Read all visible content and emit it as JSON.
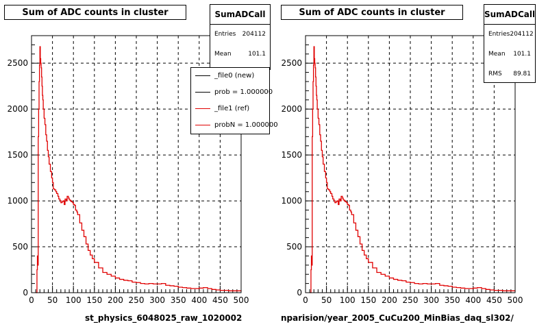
{
  "chart_data": [
    {
      "type": "line",
      "title": "Sum of ADC counts in cluster",
      "xlabel": "st_physics_6048025_raw_1020002",
      "xlim": [
        0,
        500
      ],
      "ylim": [
        0,
        2800
      ],
      "xticks": [
        "0",
        "50",
        "100",
        "150",
        "200",
        "250",
        "300",
        "350",
        "400",
        "450",
        "500"
      ],
      "yticks": [
        "0",
        "500",
        "1000",
        "1500",
        "2000",
        "2500"
      ],
      "grid": true,
      "stats": {
        "name": "SumADCall",
        "rows": [
          {
            "label": "Entries",
            "value": "204112"
          },
          {
            "label": "Mean",
            "value": "101.1"
          }
        ]
      },
      "legend": [
        {
          "label": "_file0 (new)",
          "color": "#000000"
        },
        {
          "label": "prob = 1.000000",
          "color": "#000000"
        },
        {
          "label": "_file1 (ref)",
          "color": "#e00000"
        },
        {
          "label": "probN = 1.000000",
          "color": "#e00000"
        }
      ],
      "series": [
        {
          "color": "#e00000",
          "x": [
            10,
            13,
            14,
            15,
            16,
            17,
            18,
            19,
            20,
            21,
            22,
            23,
            24,
            25,
            26,
            27,
            28,
            30,
            32,
            34,
            36,
            38,
            40,
            42,
            45,
            48,
            50,
            52,
            55,
            58,
            60,
            63,
            65,
            68,
            70,
            73,
            75,
            78,
            80,
            83,
            85,
            88,
            90,
            93,
            95,
            98,
            100,
            103,
            105,
            108,
            110,
            115,
            120,
            125,
            130,
            135,
            140,
            145,
            150,
            160,
            170,
            180,
            190,
            200,
            210,
            220,
            230,
            240,
            250,
            260,
            270,
            280,
            290,
            300,
            310,
            320,
            330,
            340,
            350,
            360,
            370,
            380,
            390,
            400,
            410,
            420,
            430,
            440,
            450,
            460,
            470,
            480,
            490,
            500
          ],
          "y": [
            0,
            250,
            400,
            300,
            1700,
            2000,
            2300,
            2480,
            2680,
            2550,
            2500,
            2450,
            2350,
            2250,
            2150,
            2100,
            2000,
            1900,
            1830,
            1720,
            1650,
            1550,
            1480,
            1400,
            1320,
            1250,
            1200,
            1130,
            1120,
            1100,
            1080,
            1050,
            1020,
            1000,
            980,
            990,
            1000,
            960,
            1020,
            1000,
            1050,
            1030,
            1010,
            1000,
            990,
            980,
            960,
            950,
            900,
            880,
            850,
            760,
            680,
            610,
            530,
            460,
            410,
            370,
            330,
            270,
            220,
            200,
            180,
            160,
            145,
            135,
            130,
            115,
            110,
            100,
            95,
            100,
            95,
            95,
            100,
            80,
            75,
            70,
            60,
            55,
            50,
            45,
            45,
            50,
            55,
            45,
            35,
            30,
            25,
            25,
            20,
            20,
            20,
            15
          ]
        }
      ]
    },
    {
      "type": "line",
      "title": "Sum of ADC counts in cluster",
      "xlabel": "nparision/year_2005_CuCu200_MinBias_daq_sl302/",
      "xlim": [
        0,
        500
      ],
      "ylim": [
        0,
        2800
      ],
      "xticks": [
        "0",
        "50",
        "100",
        "150",
        "200",
        "250",
        "300",
        "350",
        "400",
        "450",
        "500"
      ],
      "yticks": [
        "0",
        "500",
        "1000",
        "1500",
        "2000",
        "2500"
      ],
      "grid": true,
      "stats": {
        "name": "SumADCall",
        "rows": [
          {
            "label": "Entries",
            "value": "204112"
          },
          {
            "label": "Mean",
            "value": "101.1"
          },
          {
            "label": "RMS",
            "value": "89.81"
          }
        ]
      },
      "series": [
        {
          "color": "#e00000",
          "x": [
            10,
            13,
            14,
            15,
            16,
            17,
            18,
            19,
            20,
            21,
            22,
            23,
            24,
            25,
            26,
            27,
            28,
            30,
            32,
            34,
            36,
            38,
            40,
            42,
            45,
            48,
            50,
            52,
            55,
            58,
            60,
            63,
            65,
            68,
            70,
            73,
            75,
            78,
            80,
            83,
            85,
            88,
            90,
            93,
            95,
            98,
            100,
            103,
            105,
            108,
            110,
            115,
            120,
            125,
            130,
            135,
            140,
            145,
            150,
            160,
            170,
            180,
            190,
            200,
            210,
            220,
            230,
            240,
            250,
            260,
            270,
            280,
            290,
            300,
            310,
            320,
            330,
            340,
            350,
            360,
            370,
            380,
            390,
            400,
            410,
            420,
            430,
            440,
            450,
            460,
            470,
            480,
            490,
            500
          ],
          "y": [
            0,
            250,
            400,
            300,
            1700,
            2000,
            2300,
            2480,
            2680,
            2550,
            2500,
            2450,
            2350,
            2250,
            2150,
            2100,
            2000,
            1900,
            1830,
            1720,
            1650,
            1550,
            1480,
            1400,
            1320,
            1250,
            1200,
            1130,
            1120,
            1100,
            1080,
            1050,
            1020,
            1000,
            980,
            990,
            1000,
            960,
            1020,
            1000,
            1050,
            1030,
            1010,
            1000,
            990,
            980,
            960,
            950,
            900,
            880,
            850,
            760,
            680,
            610,
            530,
            460,
            410,
            370,
            330,
            270,
            220,
            200,
            180,
            160,
            145,
            135,
            130,
            115,
            110,
            100,
            95,
            100,
            95,
            95,
            100,
            80,
            75,
            70,
            60,
            55,
            50,
            45,
            45,
            50,
            55,
            45,
            35,
            30,
            25,
            25,
            20,
            20,
            20,
            15
          ]
        }
      ]
    }
  ]
}
